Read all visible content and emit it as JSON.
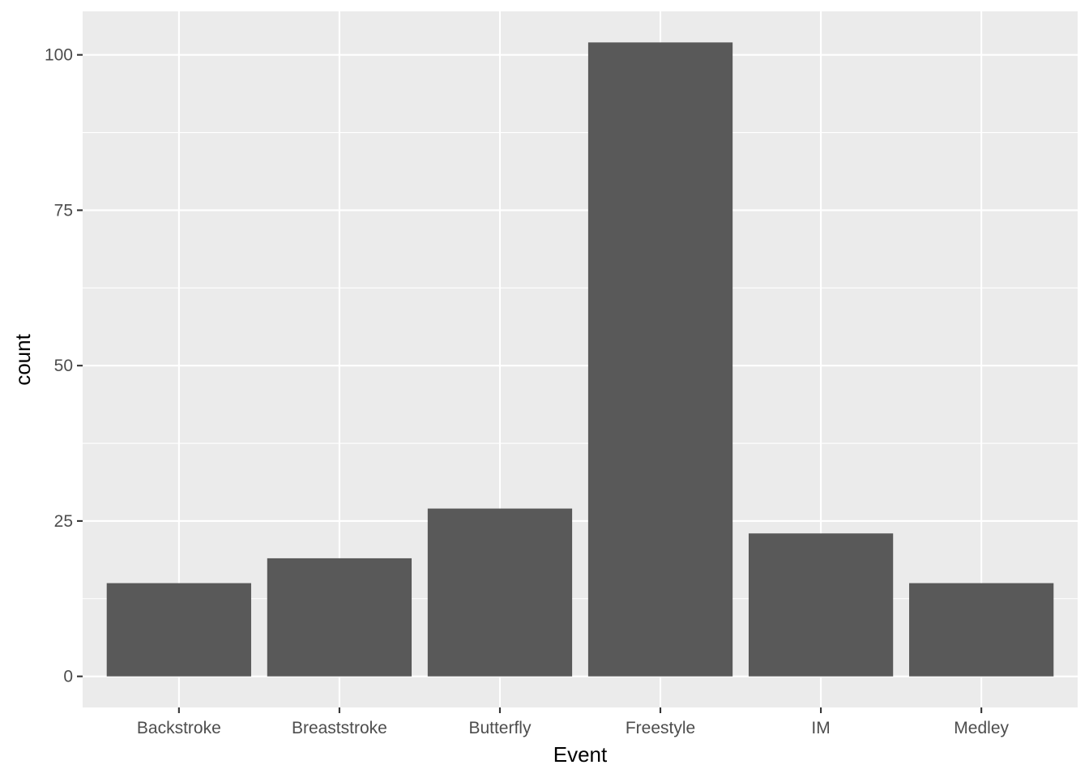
{
  "chart_data": {
    "type": "bar",
    "title": "",
    "xlabel": "Event",
    "ylabel": "count",
    "categories": [
      "Backstroke",
      "Breaststroke",
      "Butterfly",
      "Freestyle",
      "IM",
      "Medley"
    ],
    "values": [
      15,
      19,
      27,
      102,
      23,
      15
    ],
    "ylim": [
      -5,
      107
    ],
    "yticks": [
      0,
      25,
      50,
      75,
      100
    ],
    "grid": true,
    "legend": "none",
    "colors": {
      "bar": "#595959",
      "panel": "#EBEBEB",
      "grid": "#FFFFFF",
      "tick_text": "#4D4D4D",
      "axis_title": "#000000"
    }
  }
}
